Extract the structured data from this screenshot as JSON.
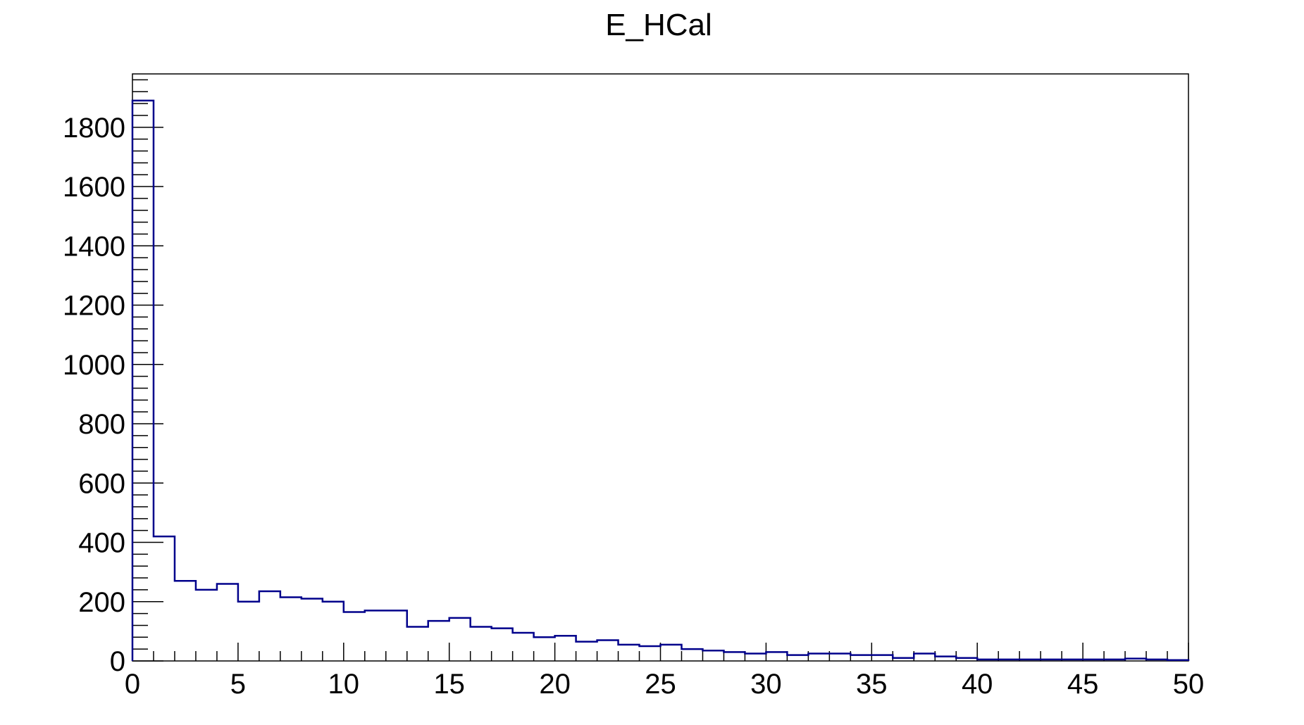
{
  "chart_data": {
    "type": "bar",
    "title": "E_HCal",
    "xlabel": "",
    "ylabel": "",
    "xlim": [
      0,
      50
    ],
    "ylim": [
      0,
      1980
    ],
    "bin_width": 1,
    "x_major_ticks": [
      0,
      5,
      10,
      15,
      20,
      25,
      30,
      35,
      40,
      45,
      50
    ],
    "y_major_ticks": [
      0,
      200,
      400,
      600,
      800,
      1000,
      1200,
      1400,
      1600,
      1800
    ],
    "grid": false,
    "legend": "none",
    "bin_low_edges": [
      0,
      1,
      2,
      3,
      4,
      5,
      6,
      7,
      8,
      9,
      10,
      11,
      12,
      13,
      14,
      15,
      16,
      17,
      18,
      19,
      20,
      21,
      22,
      23,
      24,
      25,
      26,
      27,
      28,
      29,
      30,
      31,
      32,
      33,
      34,
      35,
      36,
      37,
      38,
      39,
      40,
      41,
      42,
      43,
      44,
      45,
      46,
      47,
      48,
      49
    ],
    "values": [
      1890,
      420,
      270,
      240,
      260,
      200,
      235,
      215,
      210,
      200,
      165,
      170,
      170,
      115,
      135,
      145,
      115,
      110,
      95,
      80,
      85,
      65,
      70,
      55,
      50,
      55,
      40,
      35,
      30,
      25,
      30,
      20,
      25,
      25,
      20,
      20,
      10,
      25,
      15,
      10,
      5,
      5,
      5,
      5,
      5,
      5,
      5,
      8,
      5,
      3
    ],
    "line_color": "#00008b",
    "axis_color": "#000000"
  }
}
